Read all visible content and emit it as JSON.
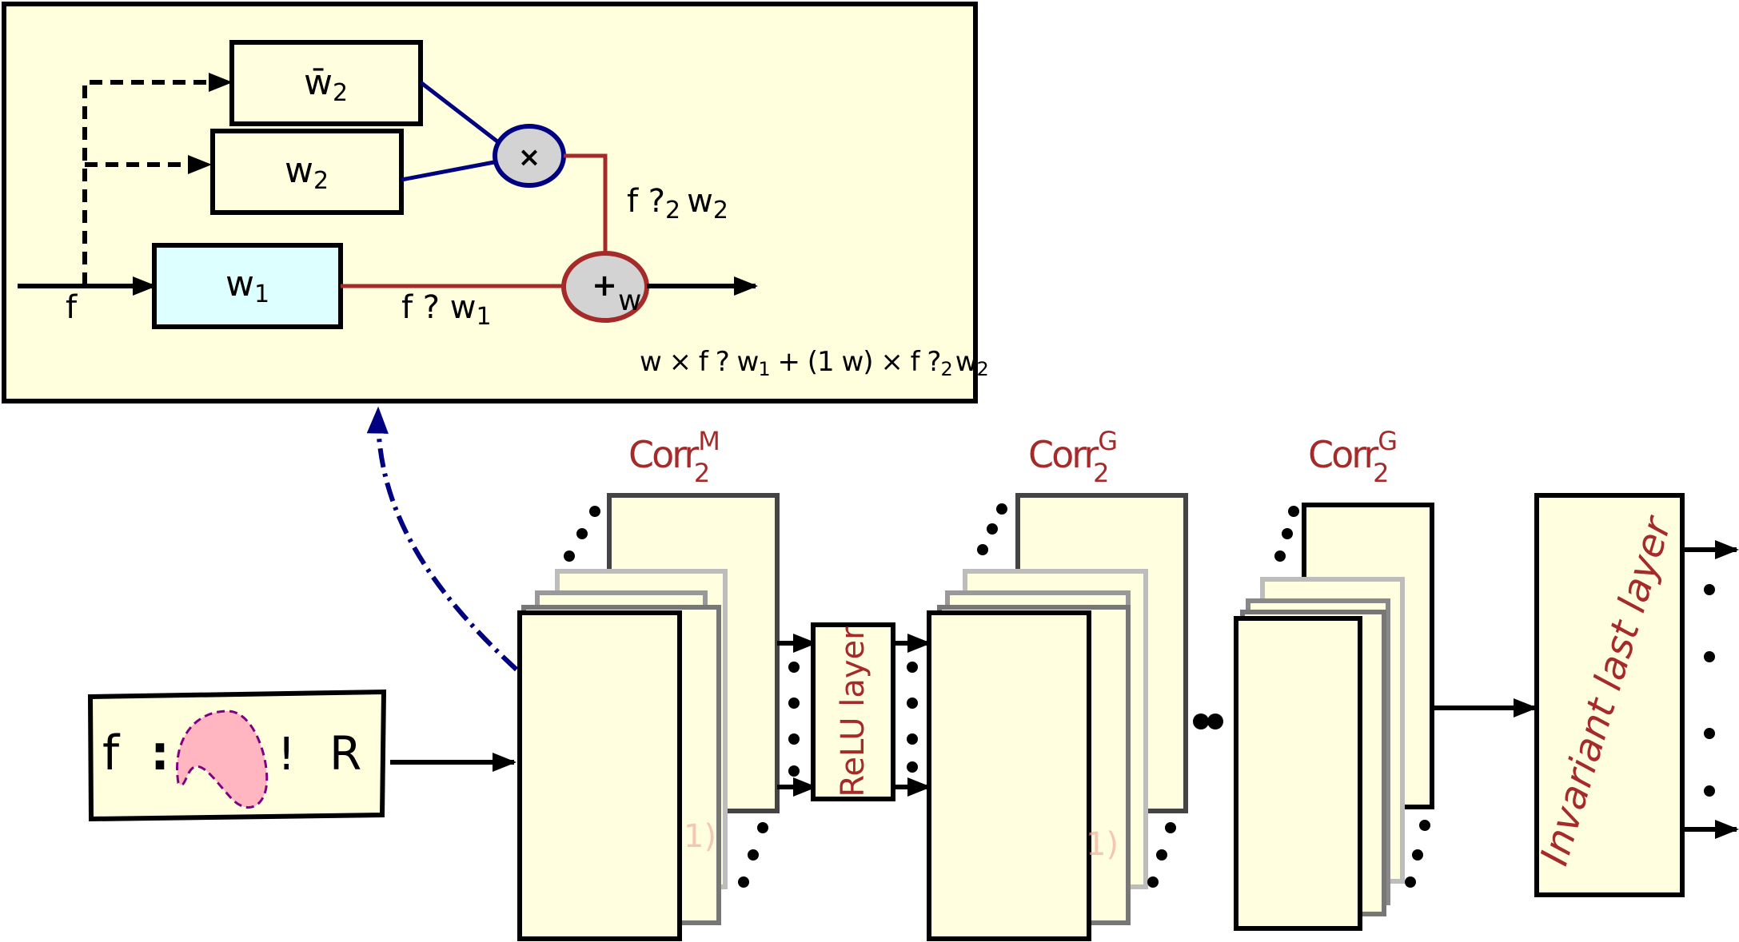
{
  "inset": {
    "w2_bar_label": "w̄",
    "w2_label": "w",
    "w1_label": "w",
    "subscript_2": "2",
    "subscript_1": "1",
    "input_f": "f",
    "mult_symbol": "×",
    "plus_symbol": "+",
    "weight_label": "w",
    "branch2_label_a": "f  ?",
    "branch2_label_b": "w",
    "branch1_label_a": "f  ? w",
    "formula_a": "w × f  ? w",
    "formula_b": " + (1   w) × f  ?",
    "formula_c": "w"
  },
  "network": {
    "input_label_f": "f",
    "input_label_colon": ":",
    "input_label_bang": "!",
    "input_label_R": "R",
    "block1_label": "Corr",
    "block1_sup": "M",
    "block1_sub": "2",
    "relu_label": "ReLU layer",
    "block2_label": "Corr",
    "block2_sup": "G",
    "block2_sub": "2",
    "block3_label": "Corr",
    "block3_sup": "G",
    "block3_sub": "2",
    "last_layer_label": "Invariant last layer",
    "faint_mark_1": "1)",
    "faint_mark_2": "1)"
  },
  "colors": {
    "inset_bg": "#ffffdd",
    "layer_fill": "#ffffe0",
    "w1_fill": "#ddffff",
    "dark_red": "#a52a2a",
    "navy": "#000080",
    "node_fill": "#d3d3d3",
    "pink": "#ffb6c1",
    "purple": "#800080"
  }
}
